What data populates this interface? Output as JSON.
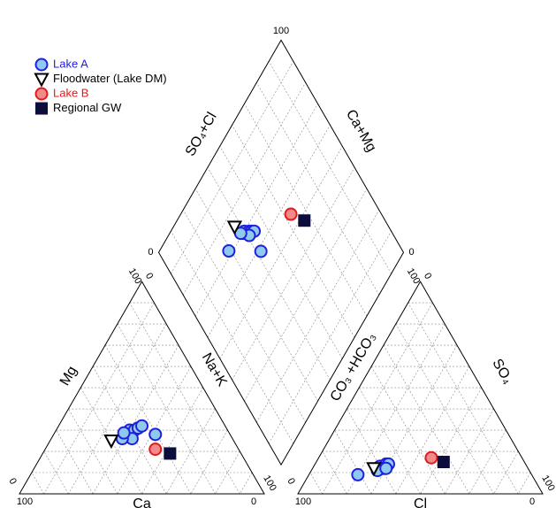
{
  "chart_data": {
    "type": "piper",
    "range": [
      0,
      100
    ],
    "ticks": [
      0,
      100
    ],
    "grid": true,
    "grid_interval": 10,
    "legend_position": "upper left",
    "axis_labels": {
      "ca": "Ca",
      "mg": "Mg",
      "nak": "Na+K",
      "so4cl": "SO₄+Cl",
      "camg": "Ca+Mg",
      "co3hco3": "CO₃ +HCO₃",
      "cl": "Cl",
      "so4": "SO₄"
    },
    "series": [
      {
        "name": "Lake A",
        "color": "#1f1fe0",
        "fill": "#8fc9ee",
        "marker": "circle",
        "points": [
          {
            "Mg": 28,
            "Na+K": 30,
            "SO4": 12,
            "Cl": 27
          },
          {
            "Mg": 30,
            "Na+K": 30,
            "SO4": 13,
            "Cl": 27
          },
          {
            "Mg": 30,
            "Na+K": 32,
            "SO4": 13,
            "Cl": 29
          },
          {
            "Mg": 31,
            "Na+K": 33,
            "SO4": 14,
            "Cl": 29
          },
          {
            "Mg": 32,
            "Na+K": 34,
            "SO4": 14,
            "Cl": 30
          },
          {
            "Mg": 26,
            "Na+K": 33,
            "SO4": 12,
            "Cl": 29
          },
          {
            "Mg": 26,
            "Na+K": 29,
            "SO4": 11,
            "Cl": 27
          },
          {
            "Mg": 28,
            "Na+K": 41.5,
            "SO4": 12,
            "Cl": 30
          },
          {
            "Mg": 28.7,
            "Na+K": 28.3,
            "SO4": 9,
            "Cl": 20
          }
        ]
      },
      {
        "name": "Floodwater (Lake DM)",
        "color": "#000000",
        "fill": "#ffffff",
        "marker": "triangle",
        "points": [
          {
            "Mg": 25,
            "Na+K": 25,
            "SO4": 12,
            "Cl": 25
          }
        ]
      },
      {
        "name": "Lake B",
        "color": "#e31a1c",
        "fill": "#f28a8a",
        "marker": "circle",
        "points": [
          {
            "Mg": 21,
            "Na+K": 45,
            "SO4": 17,
            "Cl": 46
          }
        ]
      },
      {
        "name": "Regional GW",
        "color": "#000000",
        "fill": "#0d0d3d",
        "marker": "square",
        "points": [
          {
            "Mg": 19,
            "Na+K": 52,
            "SO4": 15,
            "Cl": 52
          }
        ]
      }
    ]
  }
}
